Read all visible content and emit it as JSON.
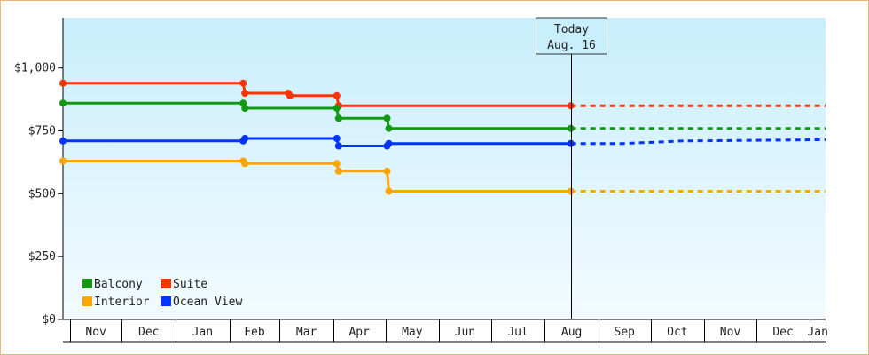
{
  "chart_data": {
    "type": "line",
    "title": "",
    "xlabel": "",
    "ylabel": "",
    "ylim": [
      0,
      1200
    ],
    "y_ticks": [
      {
        "value": 0,
        "label": "$0"
      },
      {
        "value": 250,
        "label": "$250"
      },
      {
        "value": 500,
        "label": "$500"
      },
      {
        "value": 750,
        "label": "$750"
      },
      {
        "value": 1000,
        "label": "$1,000"
      }
    ],
    "x_axis": {
      "type": "date",
      "range": [
        "2015-10-28",
        "2017-01-10"
      ],
      "months": [
        {
          "label": "Nov",
          "start": "2015-11-01"
        },
        {
          "label": "Dec",
          "start": "2015-12-01"
        },
        {
          "label": "Jan",
          "start": "2016-01-01"
        },
        {
          "label": "Feb",
          "start": "2016-02-01"
        },
        {
          "label": "Mar",
          "start": "2016-03-01"
        },
        {
          "label": "Apr",
          "start": "2016-04-01"
        },
        {
          "label": "May",
          "start": "2016-05-01"
        },
        {
          "label": "Jun",
          "start": "2016-06-01"
        },
        {
          "label": "Jul",
          "start": "2016-07-01"
        },
        {
          "label": "Aug",
          "start": "2016-08-01"
        },
        {
          "label": "Sep",
          "start": "2016-09-01"
        },
        {
          "label": "Oct",
          "start": "2016-10-01"
        },
        {
          "label": "Nov",
          "start": "2016-11-01"
        },
        {
          "label": "Dec",
          "start": "2016-12-01"
        },
        {
          "label": "Jan",
          "start": "2017-01-01"
        }
      ]
    },
    "today": {
      "date": "2016-08-16",
      "line1": "Today",
      "line2": "Aug. 16"
    },
    "series": [
      {
        "name": "Suite",
        "color": "#ff3300",
        "points": [
          {
            "x": "2015-10-28",
            "y": 940
          },
          {
            "x": "2016-02-09",
            "y": 940
          },
          {
            "x": "2016-02-10",
            "y": 900
          },
          {
            "x": "2016-03-06",
            "y": 900
          },
          {
            "x": "2016-03-07",
            "y": 890
          },
          {
            "x": "2016-04-03",
            "y": 890
          },
          {
            "x": "2016-04-04",
            "y": 850
          },
          {
            "x": "2016-08-16",
            "y": 850
          }
        ],
        "projection": [
          {
            "x": "2016-08-16",
            "y": 850
          },
          {
            "x": "2017-01-10",
            "y": 850
          }
        ]
      },
      {
        "name": "Balcony",
        "color": "#119911",
        "points": [
          {
            "x": "2015-10-28",
            "y": 860
          },
          {
            "x": "2016-02-09",
            "y": 860
          },
          {
            "x": "2016-02-10",
            "y": 840
          },
          {
            "x": "2016-04-03",
            "y": 840
          },
          {
            "x": "2016-04-04",
            "y": 800
          },
          {
            "x": "2016-05-02",
            "y": 800
          },
          {
            "x": "2016-05-03",
            "y": 760
          },
          {
            "x": "2016-08-16",
            "y": 760
          }
        ],
        "projection": [
          {
            "x": "2016-08-16",
            "y": 760
          },
          {
            "x": "2017-01-10",
            "y": 760
          }
        ]
      },
      {
        "name": "Ocean View",
        "color": "#0033ff",
        "points": [
          {
            "x": "2015-10-28",
            "y": 710
          },
          {
            "x": "2016-02-09",
            "y": 710
          },
          {
            "x": "2016-02-10",
            "y": 720
          },
          {
            "x": "2016-04-03",
            "y": 720
          },
          {
            "x": "2016-04-04",
            "y": 690
          },
          {
            "x": "2016-05-02",
            "y": 690
          },
          {
            "x": "2016-05-03",
            "y": 700
          },
          {
            "x": "2016-08-16",
            "y": 700
          }
        ],
        "projection": [
          {
            "x": "2016-08-16",
            "y": 700
          },
          {
            "x": "2016-09-15",
            "y": 700
          },
          {
            "x": "2016-10-20",
            "y": 710
          },
          {
            "x": "2017-01-10",
            "y": 715
          }
        ]
      },
      {
        "name": "Interior",
        "color": "#ffa500",
        "points": [
          {
            "x": "2015-10-28",
            "y": 630
          },
          {
            "x": "2016-02-09",
            "y": 630
          },
          {
            "x": "2016-02-10",
            "y": 620
          },
          {
            "x": "2016-04-03",
            "y": 620
          },
          {
            "x": "2016-04-04",
            "y": 590
          },
          {
            "x": "2016-05-02",
            "y": 590
          },
          {
            "x": "2016-05-03",
            "y": 510
          },
          {
            "x": "2016-08-16",
            "y": 510
          }
        ],
        "projection": [
          {
            "x": "2016-08-16",
            "y": 510
          },
          {
            "x": "2017-01-10",
            "y": 510
          }
        ]
      }
    ],
    "legend": {
      "placement": "bottom-left",
      "items": [
        "Balcony",
        "Suite",
        "Interior",
        "Ocean View"
      ]
    },
    "colors": {
      "background_top": "#c9eefc",
      "background_bottom": "#f2fbff",
      "axis": "#000000",
      "frame_border": "#e8b878"
    }
  }
}
